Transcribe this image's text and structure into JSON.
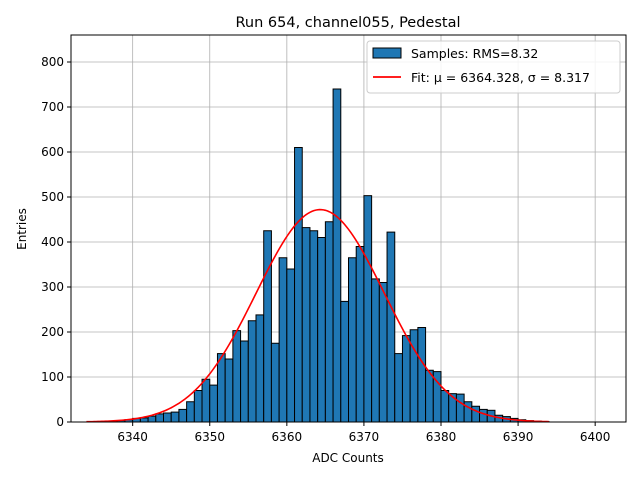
{
  "chart_data": {
    "type": "bar",
    "title": "Run 654, channel055, Pedestal",
    "xlabel": "ADC Counts",
    "ylabel": "Entries",
    "xlim": [
      6332,
      6404
    ],
    "ylim": [
      0,
      860
    ],
    "xticks": [
      6340,
      6350,
      6360,
      6370,
      6380,
      6390,
      6400
    ],
    "yticks": [
      0,
      100,
      200,
      300,
      400,
      500,
      600,
      700,
      800
    ],
    "grid": true,
    "legend_position": "top-right",
    "colors": {
      "bars": "#1f77b4",
      "bar_edge": "#000000",
      "fit": "#ff0000",
      "grid": "#b0b0b0"
    },
    "series": [
      {
        "name": "Samples: RMS=8.32",
        "kind": "histogram",
        "bin_width": 1,
        "x": [
          6336,
          6337,
          6338,
          6339,
          6340,
          6341,
          6342,
          6343,
          6344,
          6345,
          6346,
          6347,
          6348,
          6349,
          6350,
          6351,
          6352,
          6353,
          6354,
          6355,
          6356,
          6357,
          6358,
          6359,
          6360,
          6361,
          6362,
          6363,
          6364,
          6365,
          6366,
          6367,
          6368,
          6369,
          6370,
          6371,
          6372,
          6373,
          6374,
          6375,
          6376,
          6377,
          6378,
          6379,
          6380,
          6381,
          6382,
          6383,
          6384,
          6385,
          6386,
          6387,
          6388,
          6389,
          6390,
          6391,
          6392,
          6393
        ],
        "values": [
          1,
          2,
          3,
          5,
          8,
          9,
          13,
          18,
          20,
          22,
          28,
          45,
          70,
          95,
          82,
          152,
          140,
          203,
          180,
          225,
          238,
          425,
          175,
          365,
          340,
          610,
          432,
          425,
          410,
          445,
          740,
          268,
          365,
          390,
          503,
          318,
          310,
          422,
          152,
          192,
          205,
          210,
          115,
          112,
          70,
          63,
          62,
          45,
          35,
          28,
          26,
          15,
          12,
          8,
          5,
          3,
          2,
          1
        ]
      },
      {
        "name": "Fit: μ = 6364.328, σ = 8.317",
        "kind": "gaussian",
        "mu": 6364.328,
        "sigma": 8.317,
        "peak": 472,
        "x_range": [
          6334,
          6394
        ]
      }
    ],
    "legend": {
      "entries": [
        "Samples: RMS=8.32",
        "Fit: μ = 6364.328, σ = 8.317"
      ]
    }
  }
}
